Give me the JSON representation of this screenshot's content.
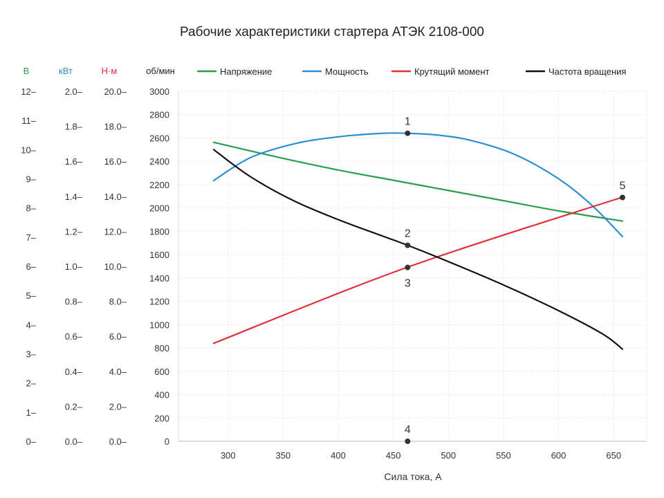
{
  "chart_data": {
    "type": "line",
    "title": "Рабочие характеристики стартера АТЭК 2108-000",
    "xlabel": "Сила тока, А",
    "xlim": [
      255,
      680
    ],
    "x_ticks": [
      "300",
      "350",
      "400",
      "450",
      "500",
      "550",
      "600",
      "650"
    ],
    "x_tick_values": [
      300,
      350,
      400,
      450,
      500,
      550,
      600,
      650
    ],
    "grid": true,
    "legend_position": "top",
    "axes": [
      {
        "unit": "об/мин",
        "color": "#222222",
        "range": [
          0,
          3000
        ],
        "ticks": [
          "0",
          "200",
          "400",
          "600",
          "800",
          "1000",
          "1200",
          "1400",
          "1600",
          "1800",
          "2000",
          "2200",
          "2400",
          "2600",
          "2800",
          "3000"
        ],
        "suffix": ""
      },
      {
        "unit": "В",
        "color": "#2a9d4a",
        "range": [
          0,
          12
        ],
        "ticks": [
          "0",
          "1",
          "2",
          "3",
          "4",
          "5",
          "6",
          "7",
          "8",
          "9",
          "10",
          "11",
          "12"
        ],
        "suffix": "–"
      },
      {
        "unit": "кВт",
        "color": "#2a8fd1",
        "range": [
          0,
          2
        ],
        "ticks": [
          "0.0",
          "0.2",
          "0.4",
          "0.6",
          "0.8",
          "1.0",
          "1.2",
          "1.4",
          "1.6",
          "1.8",
          "2.0"
        ],
        "suffix": "–"
      },
      {
        "unit": "Н·м",
        "color": "#e0303c",
        "range": [
          0,
          20
        ],
        "ticks": [
          "0.0",
          "2.0",
          "4.0",
          "6.0",
          "8.0",
          "10.0",
          "12.0",
          "14.0",
          "16.0",
          "18.0",
          "20.0"
        ],
        "suffix": "–"
      }
    ],
    "series": [
      {
        "name": "Напряжение",
        "color": "#2a9d4a",
        "axis": "В",
        "x": [
          287,
          350,
          400,
          450,
          500,
          550,
          600,
          658
        ],
        "y": [
          10.25,
          9.7,
          9.3,
          8.95,
          8.6,
          8.25,
          7.9,
          7.55
        ]
      },
      {
        "name": "Мощность",
        "color": "#2a8fd1",
        "axis": "кВт",
        "x": [
          287,
          320,
          360,
          400,
          440,
          463,
          490,
          520,
          560,
          600,
          630,
          658
        ],
        "y": [
          1.49,
          1.62,
          1.7,
          1.74,
          1.76,
          1.76,
          1.75,
          1.72,
          1.64,
          1.5,
          1.35,
          1.17
        ]
      },
      {
        "name": "Крутящий момент",
        "color": "#e0303c",
        "axis": "Н·м",
        "x": [
          287,
          463,
          658
        ],
        "y": [
          5.6,
          9.95,
          13.95
        ]
      },
      {
        "name": "Частота вращения",
        "color": "#111111",
        "axis": "об/мин",
        "x": [
          287,
          320,
          360,
          400,
          440,
          463,
          500,
          550,
          600,
          640,
          658
        ],
        "y": [
          2500,
          2270,
          2060,
          1900,
          1760,
          1680,
          1540,
          1340,
          1120,
          920,
          790
        ]
      }
    ],
    "points": [
      {
        "label": "1",
        "x": 463,
        "y": 2640,
        "label_pos": "above"
      },
      {
        "label": "2",
        "x": 463,
        "y": 1680,
        "label_pos": "above"
      },
      {
        "label": "3",
        "x": 463,
        "y": 1490,
        "label_pos": "below"
      },
      {
        "label": "4",
        "x": 463,
        "y": 0,
        "label_pos": "above"
      },
      {
        "label": "5",
        "x": 658,
        "y": 2090,
        "label_pos": "above"
      }
    ]
  }
}
